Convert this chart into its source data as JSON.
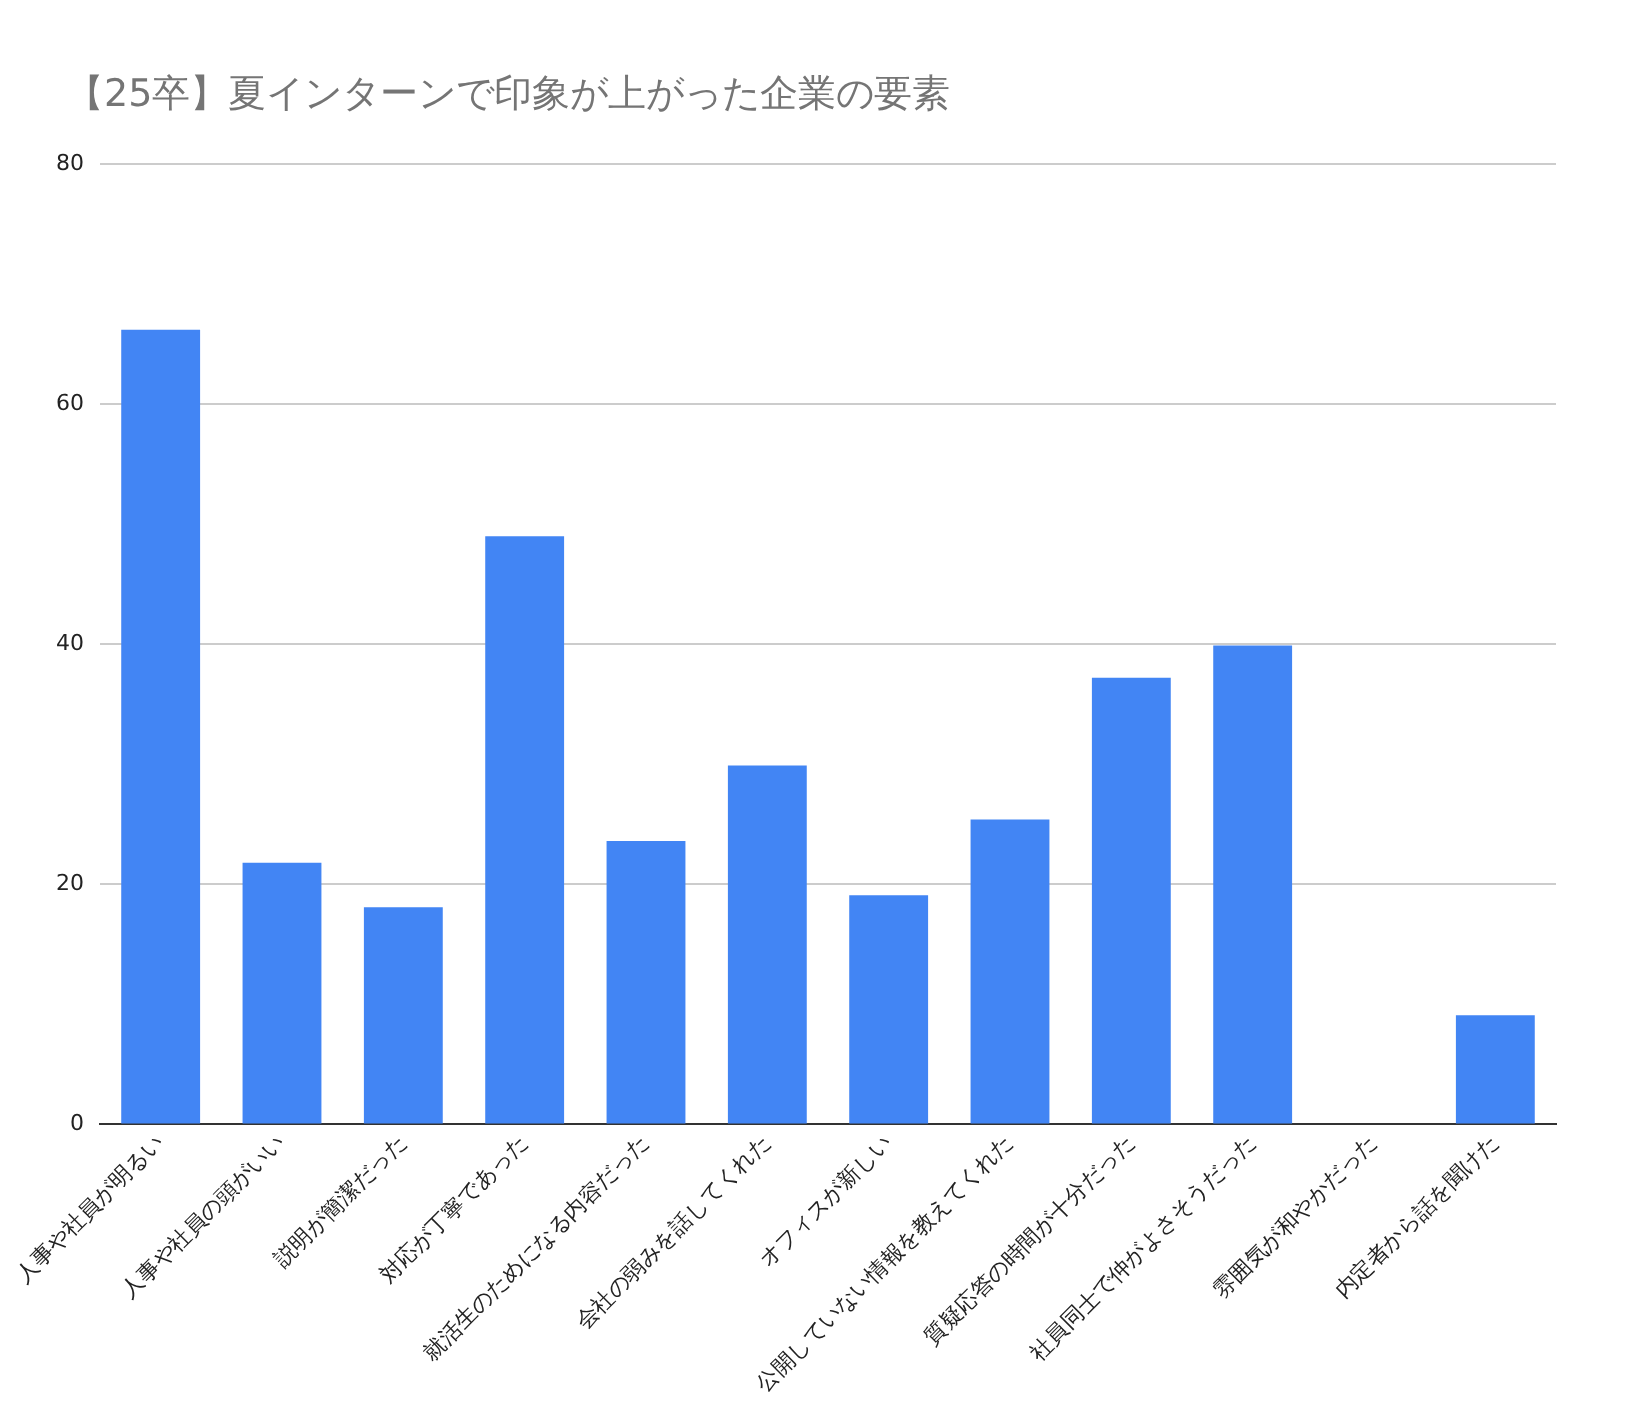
{
  "chart_data": {
    "type": "bar",
    "title": "【25卒】夏インターンで印象が上がった企業の要素",
    "categories": [
      "人事や社員が明るい",
      "人事や社員の頭がいい",
      "説明が簡潔だった",
      "対応が丁寧であった",
      "就活生のためになる内容だった",
      "会社の弱みを話してくれた",
      "オフィスが新しい",
      "公開していない情報を教えてくれた",
      "質疑応答の時間が十分だった",
      "社員同士で仲がよさそうだった",
      "雰囲気が和やかだった",
      "内定者から話を聞けた"
    ],
    "values": [
      66.2,
      21.8,
      18.1,
      49.0,
      23.6,
      29.9,
      19.1,
      25.4,
      37.2,
      39.9,
      0,
      9.1
    ],
    "color": "#4285f4",
    "ylim": [
      0,
      80
    ],
    "yticks": [
      0,
      20,
      40,
      60,
      80
    ],
    "grid": "y",
    "legend": false
  }
}
